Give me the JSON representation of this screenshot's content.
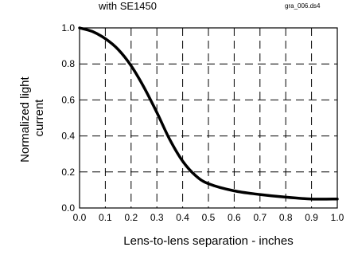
{
  "header": {
    "title_fragment": "with SE1450",
    "file_tag": "gra_006.ds4"
  },
  "chart_data": {
    "type": "line",
    "title": "with SE1450",
    "xlabel": "Lens-to-lens separation - inches",
    "ylabel": [
      "Normalized light",
      "current"
    ],
    "xlim": [
      0,
      1
    ],
    "ylim": [
      0,
      1
    ],
    "x_ticks": [
      "0.0",
      "0.1",
      "0.2",
      "0.3",
      "0.4",
      "0.5",
      "0.6",
      "0.7",
      "0.8",
      "0.9",
      "1.0"
    ],
    "y_ticks": [
      "0.0",
      "0.2",
      "0.4",
      "0.6",
      "0.8",
      "1.0"
    ],
    "grid": true,
    "series": [
      {
        "x": [
          0.0,
          0.05,
          0.1,
          0.15,
          0.2,
          0.25,
          0.3,
          0.35,
          0.4,
          0.45,
          0.5,
          0.6,
          0.7,
          0.8,
          0.9,
          1.0
        ],
        "y": [
          1.0,
          0.98,
          0.94,
          0.88,
          0.79,
          0.67,
          0.53,
          0.38,
          0.26,
          0.18,
          0.135,
          0.095,
          0.075,
          0.06,
          0.05,
          0.05
        ]
      }
    ]
  }
}
